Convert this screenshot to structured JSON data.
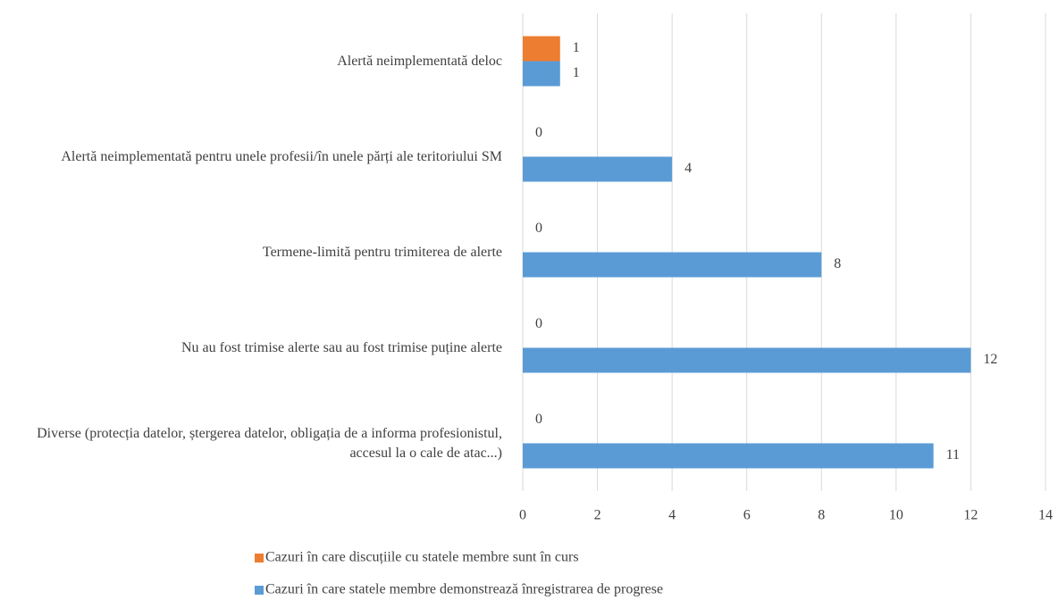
{
  "chart_data": {
    "type": "bar",
    "orientation": "horizontal",
    "categories": [
      "Alertă neimplementată deloc",
      "Alertă neimplementată pentru unele profesii/în unele părți ale teritoriului SM",
      "Termene-limită pentru trimiterea de alerte",
      "Nu au fost trimise alerte sau au fost trimise puține alerte",
      "Diverse (protecția datelor, ștergerea datelor, obligația de a informa profesionistul, accesul la o cale de atac...)"
    ],
    "series": [
      {
        "name": "Cazuri în care discuțiile cu statele membre sunt în curs",
        "color": "#ed7d31",
        "values": [
          1,
          0,
          0,
          0,
          0
        ]
      },
      {
        "name": "Cazuri în care statele membre demonstrează înregistrarea de progrese",
        "color": "#5b9bd5",
        "values": [
          1,
          4,
          8,
          12,
          11
        ]
      }
    ],
    "xlim": [
      0,
      14
    ],
    "xticks": [
      0,
      2,
      4,
      6,
      8,
      10,
      12,
      14
    ],
    "grid": true,
    "legend": "bottom"
  }
}
